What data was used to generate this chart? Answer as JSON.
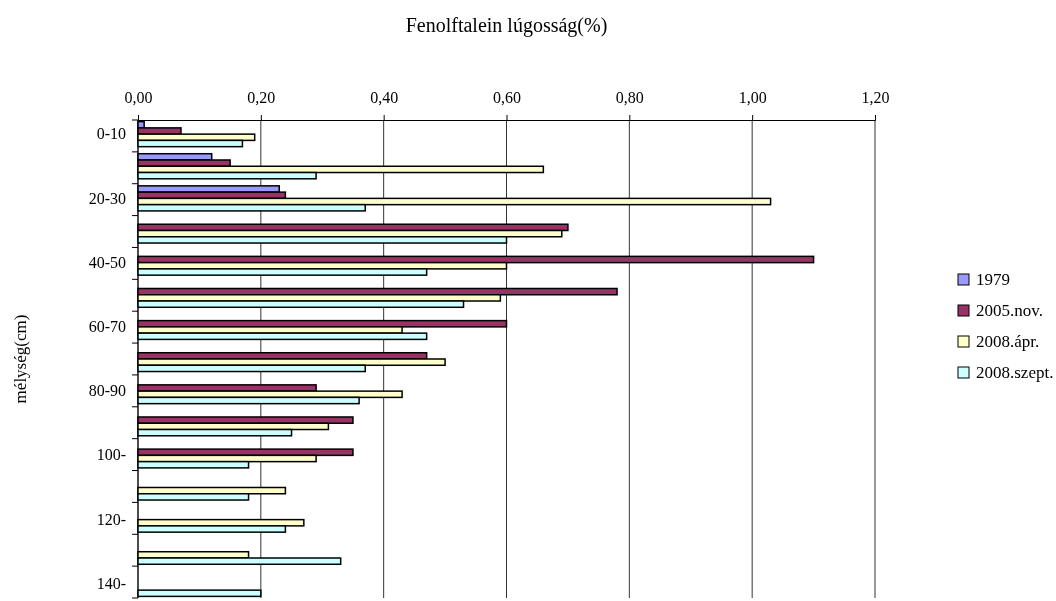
{
  "chart_data": {
    "type": "bar",
    "orientation": "horizontal",
    "xlabel": "Fenolftalein lúgosság(%)",
    "ylabel": "mélység(cm)",
    "categories": [
      "0-10",
      null,
      "20-30",
      null,
      "40-50",
      null,
      "60-70",
      null,
      "80-90",
      null,
      "100-",
      null,
      "120-",
      null,
      "140-"
    ],
    "series": [
      {
        "name": "1979",
        "color": "#9999ff",
        "values": [
          0.01,
          0.12,
          0.23,
          null,
          null,
          null,
          null,
          null,
          null,
          null,
          null,
          null,
          null,
          null,
          null
        ]
      },
      {
        "name": "2005.nov.",
        "color": "#993366",
        "values": [
          0.07,
          0.15,
          0.24,
          0.7,
          1.1,
          0.78,
          0.6,
          0.47,
          0.29,
          0.35,
          0.35,
          null,
          null,
          null,
          null
        ]
      },
      {
        "name": "2008.ápr.",
        "color": "#ffffcc",
        "values": [
          0.19,
          0.66,
          1.03,
          0.69,
          0.6,
          0.59,
          0.43,
          0.5,
          0.43,
          0.31,
          0.29,
          0.24,
          0.27,
          0.18,
          null
        ]
      },
      {
        "name": "2008.szept.",
        "color": "#ccffff",
        "values": [
          0.17,
          0.29,
          0.37,
          0.6,
          0.47,
          0.53,
          0.47,
          0.37,
          0.36,
          0.25,
          0.18,
          0.18,
          0.24,
          0.33,
          0.2
        ]
      }
    ],
    "xlim": [
      0,
      1.2
    ],
    "xticks": [
      {
        "value": 0,
        "label": "0,00"
      },
      {
        "value": 0.2,
        "label": "0,20"
      },
      {
        "value": 0.4,
        "label": "0,40"
      },
      {
        "value": 0.6,
        "label": "0,60"
      },
      {
        "value": 0.8,
        "label": "0,80"
      },
      {
        "value": 1.0,
        "label": "1,00"
      },
      {
        "value": 1.2,
        "label": "1,20"
      }
    ],
    "grid": "x",
    "legend": "right"
  }
}
